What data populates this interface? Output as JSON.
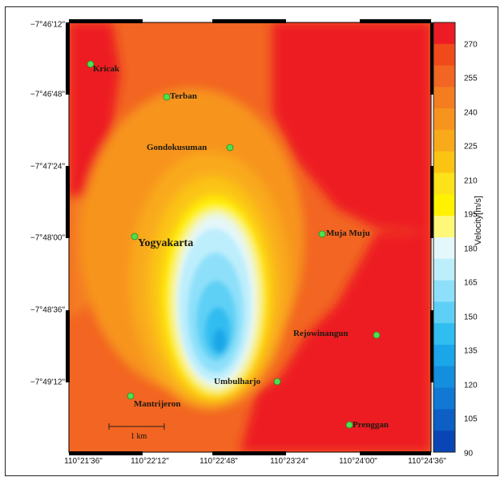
{
  "map": {
    "y_ticks": [
      "−7°46'12\"",
      "−7°46'48\"",
      "−7°47'24\"",
      "−7°48'00\"",
      "−7°48'36\"",
      "−7°49'12\""
    ],
    "x_ticks": [
      "110°21'36\"",
      "110°22'12\"",
      "110°22'48\"",
      "110°23'24\"",
      "110°24'00\"",
      "110°24'36\""
    ],
    "places": [
      {
        "name": "Kricak",
        "kind": "small"
      },
      {
        "name": "Terban",
        "kind": "small"
      },
      {
        "name": "Gondokusuman",
        "kind": "small"
      },
      {
        "name": "Yogyakarta",
        "kind": "big"
      },
      {
        "name": "Muja Muju",
        "kind": "small"
      },
      {
        "name": "Rejowinangun",
        "kind": "small"
      },
      {
        "name": "Umbulharjo",
        "kind": "small"
      },
      {
        "name": "Mantrijeron",
        "kind": "small"
      },
      {
        "name": "Prenggan",
        "kind": "small"
      }
    ],
    "scale_bar_label": "1 km",
    "marker_color": "#4ee04e"
  },
  "colorbar": {
    "title": "Velocity[m/s]",
    "ticks": [
      "270",
      "255",
      "240",
      "225",
      "210",
      "195",
      "180",
      "165",
      "150",
      "135",
      "120",
      "105",
      "90"
    ],
    "colors": [
      "#ed1c24",
      "#f14a1a",
      "#f26522",
      "#f47d20",
      "#f7941d",
      "#f9aa1a",
      "#fbc413",
      "#fde21a",
      "#fff200",
      "#fff77a",
      "#e4f7fb",
      "#bdeefc",
      "#8ee0fa",
      "#5fd0f5",
      "#30bdf0",
      "#1aa6e8",
      "#148fde",
      "#1179d3",
      "#0d5fc5",
      "#0a45b5"
    ]
  }
}
